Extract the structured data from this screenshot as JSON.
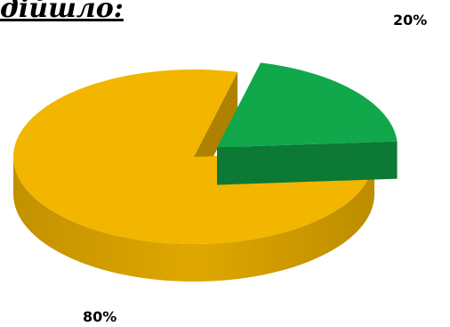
{
  "chart_data": {
    "type": "pie",
    "style": "3d-exploded",
    "title": "дійшло:",
    "labels": [
      "",
      ""
    ],
    "values": [
      20,
      80
    ],
    "data_labels": [
      "20%",
      "80%"
    ],
    "colors": [
      "#10a84a",
      "#f2b500"
    ],
    "exploded_slice": 0
  }
}
